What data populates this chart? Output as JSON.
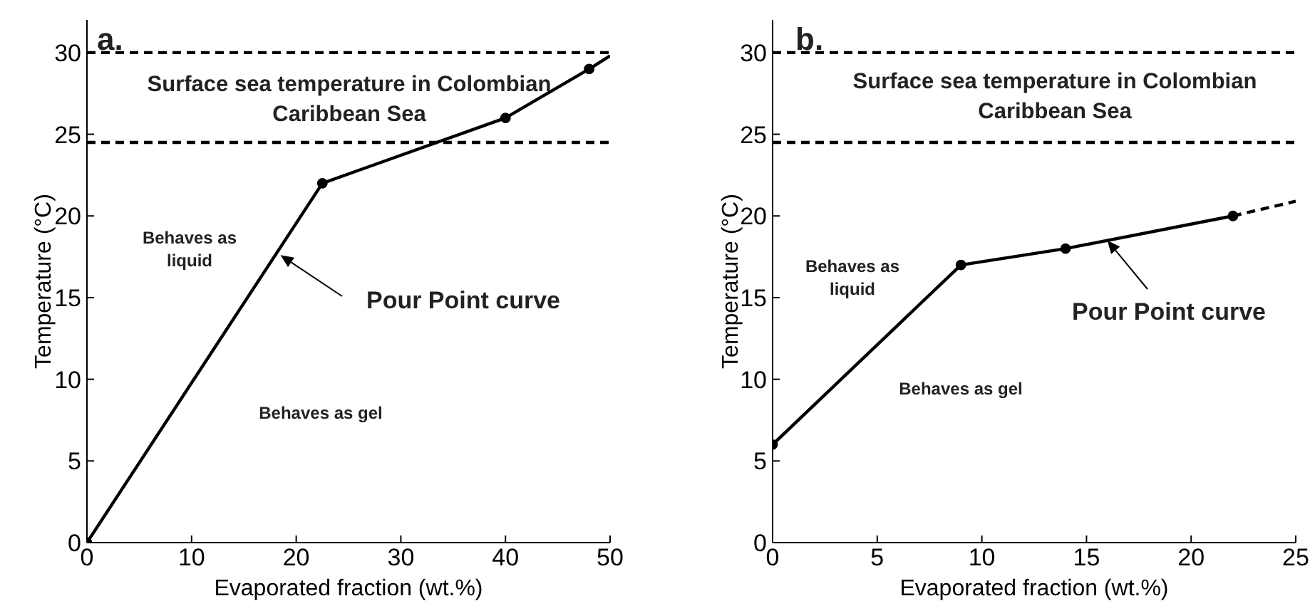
{
  "chart_data": [
    {
      "type": "line",
      "xlabel": "Evaporated fraction (wt.%)",
      "ylabel": "Temperature (°C)",
      "xlim": [
        0,
        50
      ],
      "xticks": [
        0,
        10,
        20,
        30,
        40,
        50
      ],
      "ylim": [
        0,
        32
      ],
      "yticks": [
        0,
        5,
        10,
        15,
        20,
        25,
        30
      ],
      "marker": "circle",
      "grid": false,
      "legend": false,
      "series": [
        {
          "color": "#000000",
          "x": [
            0,
            22.5,
            40,
            48
          ],
          "values": [
            0,
            22,
            26,
            29
          ]
        },
        {
          "color": "#000000",
          "x": [
            48,
            50
          ],
          "values": [
            29,
            29.8
          ],
          "marker": "none",
          "line_style": "solid"
        }
      ],
      "ref_lines": [
        {
          "axis": "y",
          "value": 30,
          "line_style": "dashed",
          "color": "#000000"
        },
        {
          "axis": "y",
          "value": 24.5,
          "line_style": "dashed",
          "color": "#000000"
        }
      ],
      "annotations": [
        "a.",
        "Surface sea temperature in Colombian Caribbean Sea",
        "Behaves as liquid",
        "Behaves as gel",
        {
          "text": "Pour Point curve",
          "x": 18.5,
          "y": 17.6
        }
      ]
    },
    {
      "type": "line",
      "xlabel": "Evaporated fraction (wt.%)",
      "ylabel": "Temperature (°C)",
      "xlim": [
        0,
        25
      ],
      "xticks": [
        0,
        5,
        10,
        15,
        20,
        25
      ],
      "ylim": [
        0,
        32
      ],
      "yticks": [
        0,
        5,
        10,
        15,
        20,
        25,
        30
      ],
      "marker": "circle",
      "grid": false,
      "legend": false,
      "series": [
        {
          "color": "#000000",
          "x": [
            0,
            9,
            14,
            22
          ],
          "values": [
            6,
            17,
            18,
            20
          ]
        },
        {
          "color": "#000000",
          "x": [
            22,
            25
          ],
          "values": [
            20,
            20.9
          ],
          "marker": "none",
          "line_style": "dashed"
        }
      ],
      "ref_lines": [
        {
          "axis": "y",
          "value": 30,
          "line_style": "dashed",
          "color": "#000000"
        },
        {
          "axis": "y",
          "value": 24.5,
          "line_style": "dashed",
          "color": "#000000"
        }
      ],
      "annotations": [
        "b.",
        "Surface sea temperature in Colombian Caribbean Sea",
        "Behaves as liquid",
        "Behaves as gel",
        {
          "text": "Pour Point curve",
          "x": 16,
          "y": 18.5
        }
      ]
    }
  ]
}
